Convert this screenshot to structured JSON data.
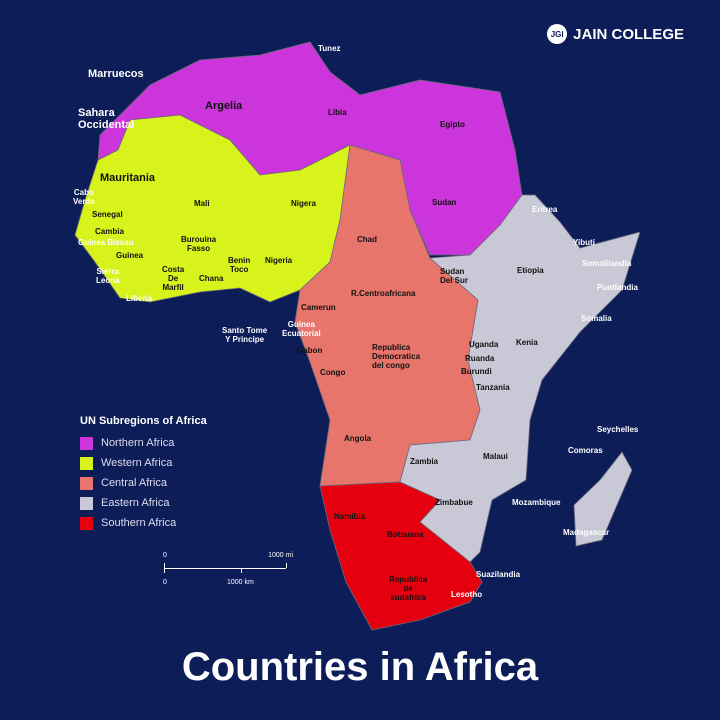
{
  "brand": {
    "logo": "JGI",
    "name": "JAIN COLLEGE"
  },
  "title": "Countries in Africa",
  "colors": {
    "background": "#0c1d58",
    "northern": "#cc35dc",
    "western": "#d8f21c",
    "central": "#e8756c",
    "eastern": "#c9c8d6",
    "southern": "#e6000f"
  },
  "legend": {
    "title": "UN Subregions of Africa",
    "items": [
      {
        "label": "Northern Africa",
        "color": "#cc35dc"
      },
      {
        "label": "Western Africa",
        "color": "#d8f21c"
      },
      {
        "label": "Central Africa",
        "color": "#e8756c"
      },
      {
        "label": "Eastern Africa",
        "color": "#c9c8d6"
      },
      {
        "label": "Southern Africa",
        "color": "#e6000f"
      }
    ]
  },
  "scale": {
    "zero_top": "0",
    "zero_bottom": "0",
    "miles": "1000 mi",
    "km": "1000 km"
  },
  "countries": [
    "Tunez",
    "Marruecos",
    "Sahara\nOccidental",
    "Argelia",
    "Libia",
    "Egipto",
    "Sudan",
    "Mauritania",
    "Cabo\nVerde",
    "Senegal",
    "Cambia",
    "Guinea Bissau",
    "Guinea",
    "Sierra\nLeona",
    "Liberia",
    "Mali",
    "Nigera",
    "Burouina\nFasso",
    "Costa\nDe\nMarfil",
    "Chana",
    "Benin\nToco",
    "Nigeria",
    "Chad",
    "R.Centroafricana",
    "Camerun",
    "Guinea\nEcuatorial",
    "Santo Tome\nY Principe",
    "Gabon",
    "Congo",
    "Republica\nDemocratica\ndel congo",
    "Angola",
    "Eritrea",
    "Yibuti",
    "Etiopia",
    "Somalilandia",
    "Puntlandia",
    "Somalia",
    "Sudan\nDel Sur",
    "Uganda",
    "Kenia",
    "Ruanda",
    "Burundi",
    "Tanzania",
    "Seychelles",
    "Comoras",
    "Malaui",
    "Zambia",
    "Mozambique",
    "Madagascar",
    "Zimbabue",
    "Namibia",
    "Botsuana",
    "Republica\nde\nsudafrica",
    "Suazilandia",
    "Lesotho"
  ]
}
